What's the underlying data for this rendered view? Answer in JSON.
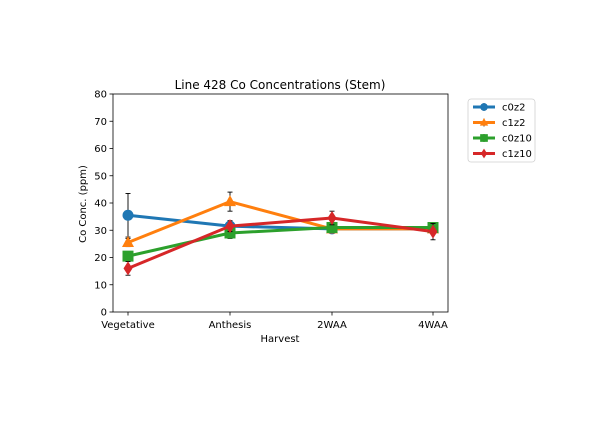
{
  "chart_data": {
    "type": "line",
    "title": "Line 428 Co Concentrations (Stem)",
    "xlabel": "Harvest",
    "ylabel": "Co Conc. (ppm)",
    "categories": [
      "Vegetative",
      "Anthesis",
      "2WAA",
      "4WAA"
    ],
    "ylim": [
      0,
      80
    ],
    "yticks": [
      0,
      10,
      20,
      30,
      40,
      50,
      60,
      70,
      80
    ],
    "grid": false,
    "legend_position": "outside-top-right",
    "series": [
      {
        "name": "c0z2",
        "color": "#1f77b4",
        "marker": "circle",
        "values": [
          35.5,
          31.5,
          30.5,
          30.5
        ],
        "errors": [
          8.0,
          1.5,
          1.0,
          1.0
        ]
      },
      {
        "name": "c1z2",
        "color": "#ff7f0e",
        "marker": "triangle",
        "values": [
          25.5,
          40.5,
          30.5,
          30.5
        ],
        "errors": [
          1.5,
          3.5,
          1.5,
          1.0
        ]
      },
      {
        "name": "c0z10",
        "color": "#2ca02c",
        "marker": "square",
        "values": [
          20.5,
          29.0,
          31.0,
          31.0
        ],
        "errors": [
          1.5,
          2.0,
          1.0,
          1.0
        ]
      },
      {
        "name": "c1z10",
        "color": "#d62728",
        "marker": "diamond",
        "values": [
          16.0,
          31.5,
          34.5,
          29.5
        ],
        "errors": [
          2.5,
          2.0,
          2.5,
          3.0
        ]
      }
    ]
  }
}
